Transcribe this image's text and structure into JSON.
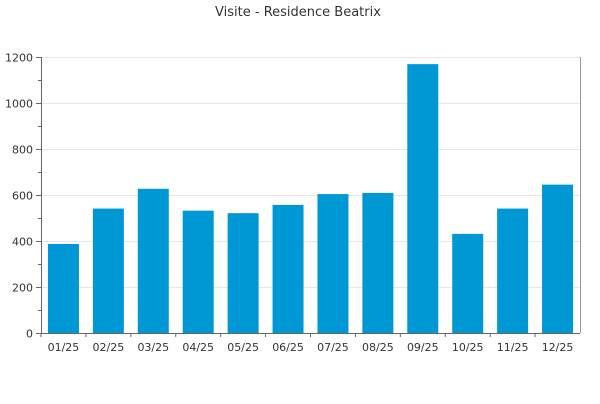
{
  "chart_data": {
    "type": "bar",
    "title": "Visite - Residence Beatrix",
    "xlabel": "",
    "ylabel": "",
    "categories": [
      "01/25",
      "02/25",
      "03/25",
      "04/25",
      "05/25",
      "06/25",
      "07/25",
      "08/25",
      "09/25",
      "10/25",
      "11/25",
      "12/25"
    ],
    "values": [
      387,
      541,
      627,
      532,
      521,
      557,
      604,
      609,
      1169,
      431,
      541,
      645
    ],
    "ylim": [
      0,
      1200
    ],
    "yticks": [
      0,
      200,
      400,
      600,
      800,
      1000,
      1200
    ],
    "bar_color": "#0098d4",
    "grid": true
  }
}
